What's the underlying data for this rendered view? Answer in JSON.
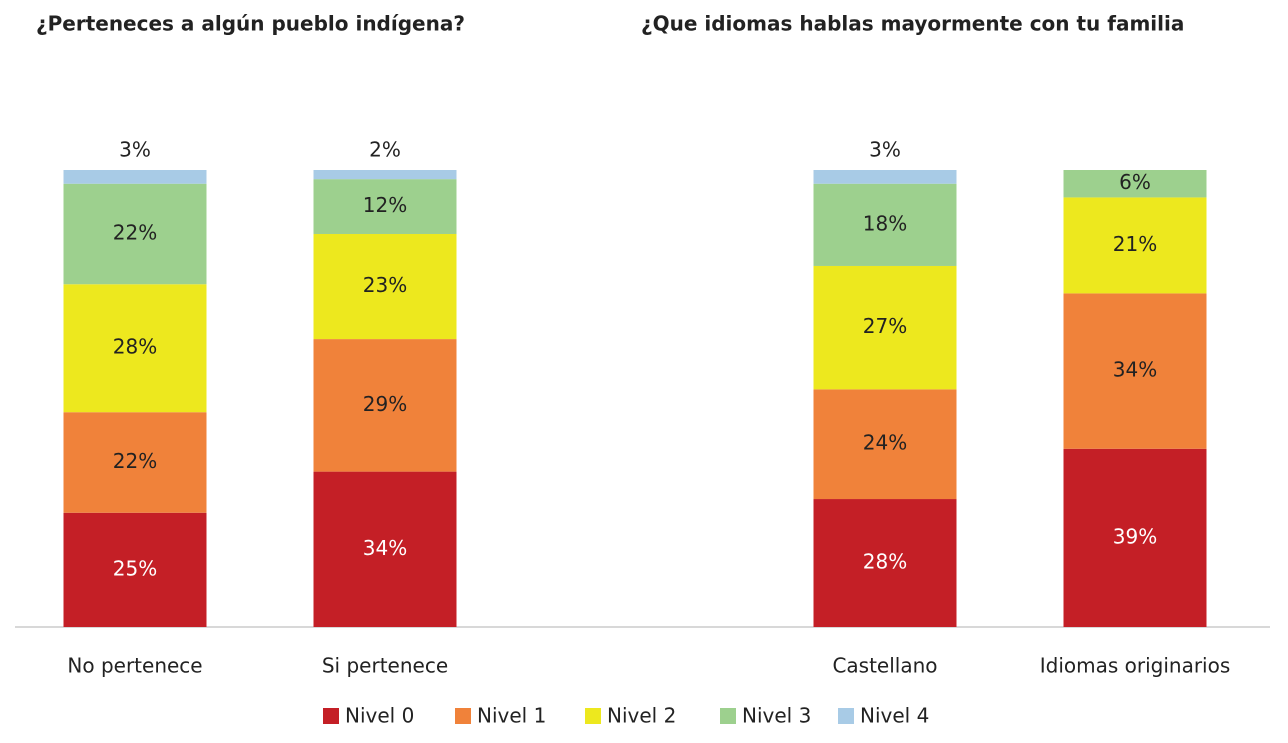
{
  "chart_data": {
    "type": "bar",
    "stacked": true,
    "titles": [
      "¿Perteneces a algún pueblo indígena?",
      "¿Que idiomas hablas mayormente con tu familia"
    ],
    "categories": [
      "No pertenece",
      "Si pertenece",
      null,
      "Castellano",
      "Idiomas originarios"
    ],
    "ylim": [
      0,
      100
    ],
    "series": [
      {
        "name": "Nivel 0",
        "color": "#c41f26",
        "values": [
          25,
          34,
          null,
          28,
          39
        ],
        "value_labels": [
          "25%",
          "34%",
          null,
          "28%",
          "39%"
        ]
      },
      {
        "name": "Nivel 1",
        "color": "#f0823a",
        "values": [
          22,
          29,
          null,
          24,
          34
        ],
        "value_labels": [
          "22%",
          "29%",
          null,
          "24%",
          "34%"
        ]
      },
      {
        "name": "Nivel 2",
        "color": "#ede81e",
        "values": [
          28,
          23,
          null,
          27,
          21
        ],
        "value_labels": [
          "28%",
          "23%",
          null,
          "27%",
          "21%"
        ]
      },
      {
        "name": "Nivel 3",
        "color": "#9dd08e",
        "values": [
          22,
          12,
          null,
          18,
          6
        ],
        "value_labels": [
          "22%",
          "12%",
          null,
          "18%",
          "6%"
        ]
      },
      {
        "name": "Nivel 4",
        "color": "#a8cbe6",
        "values": [
          3,
          2,
          null,
          3,
          null
        ],
        "value_labels": [
          "3%",
          "2%",
          null,
          "3%",
          null
        ]
      }
    ]
  }
}
